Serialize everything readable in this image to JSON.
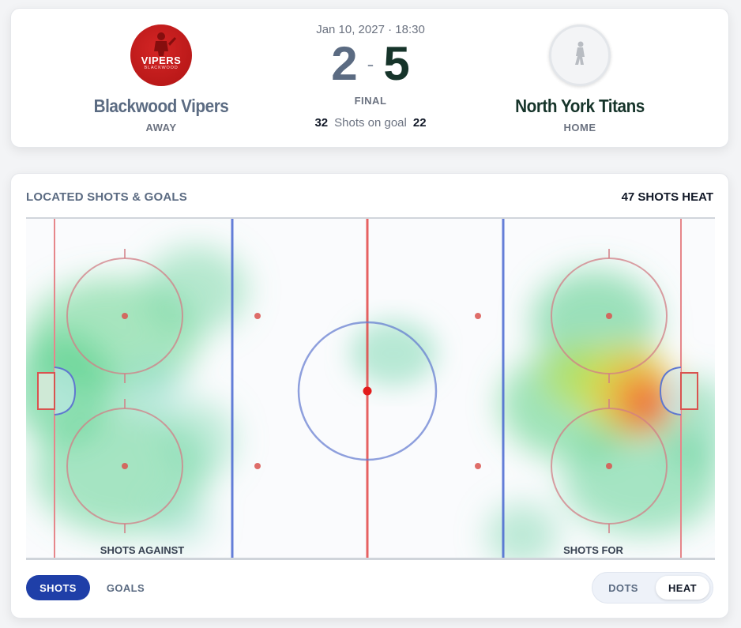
{
  "game": {
    "datetime": "Jan 10, 2027 · 18:30",
    "status": "FINAL",
    "shots_label": "Shots on goal"
  },
  "away": {
    "name": "Blackwood Vipers",
    "side": "AWAY",
    "score": "2",
    "shots": "32",
    "logo_text": "VIPERS",
    "logo_subtext": "BLACKWOOD",
    "color": "#5b6b82"
  },
  "home": {
    "name": "North York Titans",
    "side": "HOME",
    "score": "5",
    "shots": "22",
    "color": "#16342a"
  },
  "separator": "-",
  "rink": {
    "title": "LOCATED SHOTS & GOALS",
    "meta": "47 SHOTS HEAT",
    "label_against": "SHOTS AGAINST",
    "label_for": "SHOTS FOR"
  },
  "tabs": [
    {
      "label": "SHOTS",
      "active": true
    },
    {
      "label": "GOALS",
      "active": false
    }
  ],
  "view_toggle": [
    {
      "label": "DOTS",
      "active": false
    },
    {
      "label": "HEAT",
      "active": true
    }
  ],
  "colors": {
    "accent": "#1f3fa8",
    "red_line": "#e23b3b",
    "blue_line": "#3f5fd0"
  }
}
